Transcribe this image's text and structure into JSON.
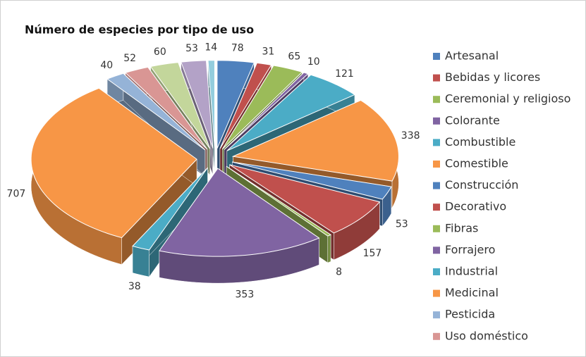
{
  "chart_data": {
    "type": "pie",
    "title": "Número de especies por tipo de uso",
    "categories": [
      "Artesanal",
      "Bebidas y licores",
      "Ceremonial y religioso",
      "Colorante",
      "Combustible",
      "Comestible",
      "Construcción",
      "Decorativo",
      "Fibras",
      "Forrajero",
      "Industrial",
      "Medicinal",
      "Pesticida",
      "Uso doméstico",
      null,
      null,
      null
    ],
    "values": [
      78,
      31,
      65,
      10,
      121,
      338,
      53,
      157,
      8,
      353,
      38,
      707,
      40,
      52,
      60,
      53,
      14
    ],
    "colors": [
      "#4f81bd",
      "#c0504d",
      "#9bbb59",
      "#8064a2",
      "#4bacc6",
      "#f79646",
      "#4f81bd",
      "#c0504d",
      "#9bbb59",
      "#8064a2",
      "#4bacc6",
      "#f79646",
      "#95b3d7",
      "#d99694",
      "#c3d69b",
      "#b3a2c7",
      "#93cddd"
    ],
    "legend": "right"
  }
}
